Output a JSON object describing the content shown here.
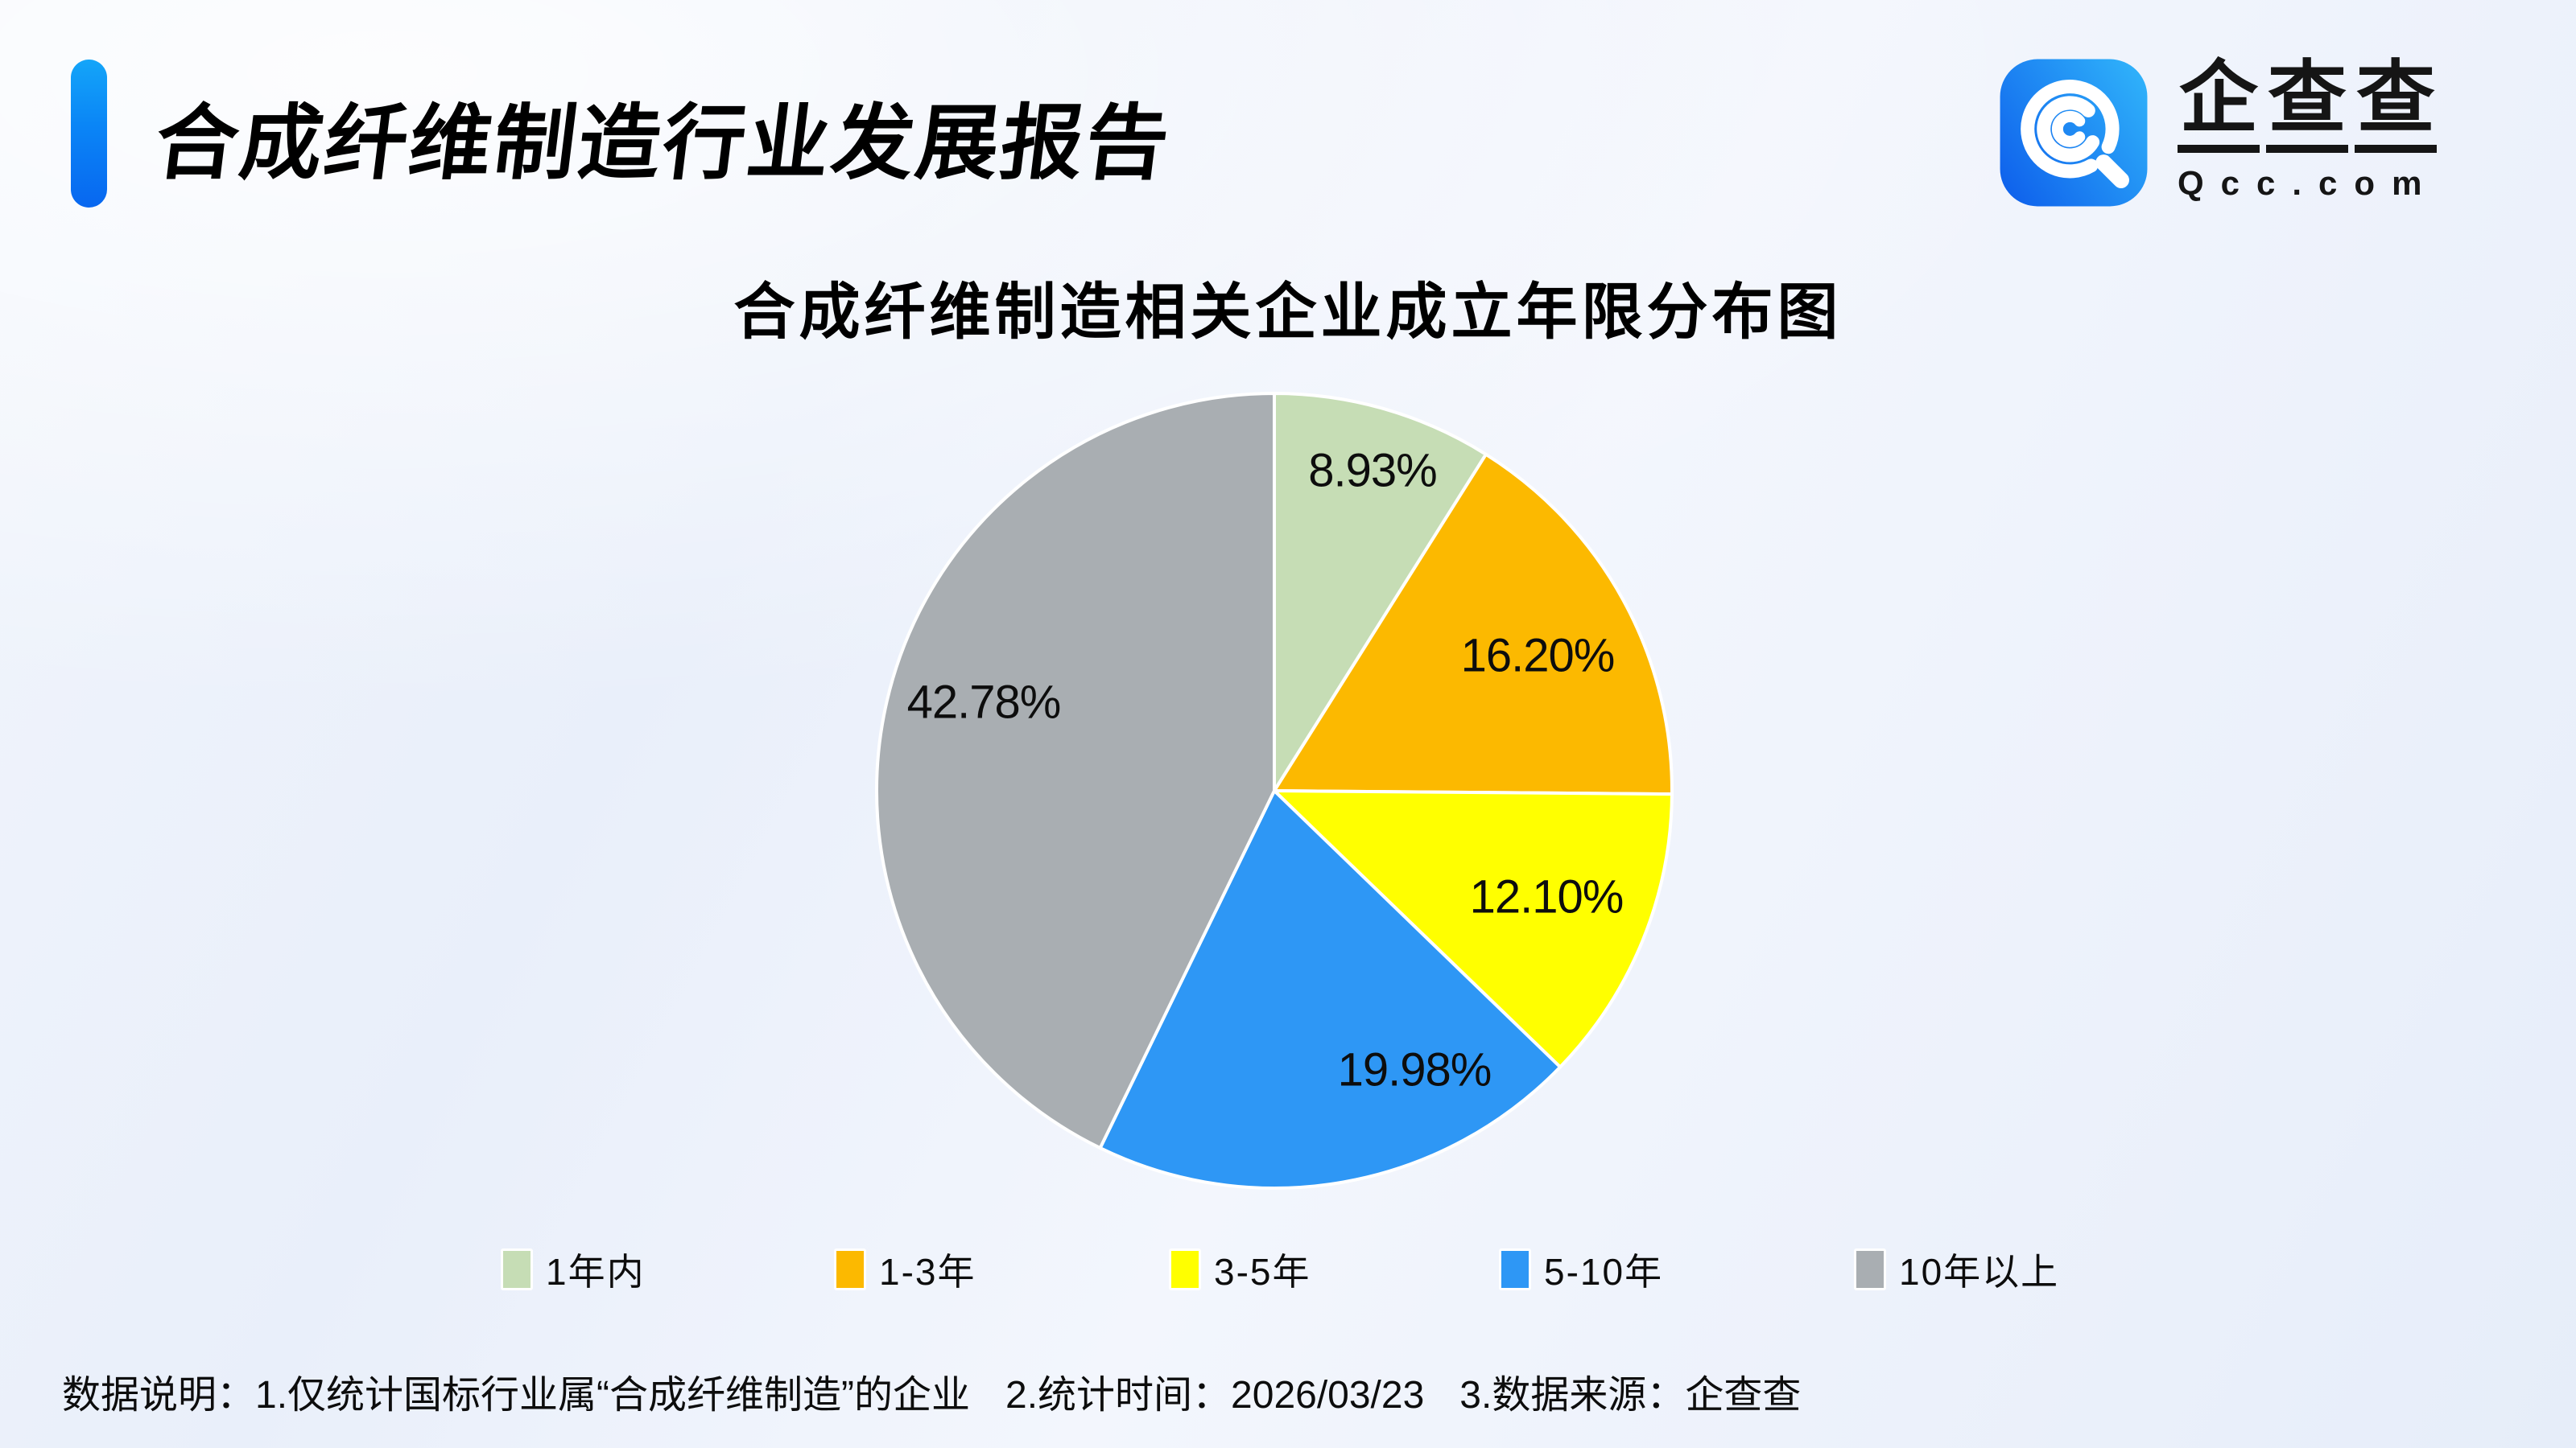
{
  "header": {
    "title": "合成纤维制造行业发展报告",
    "logo": {
      "icon": "qcc-magnifier-icon",
      "name_chars": [
        "企",
        "查",
        "查"
      ],
      "domain": "Qcc.com",
      "icon_gradient": [
        "#0f62ec",
        "#2fb1fa"
      ]
    },
    "accent_color": "#0a85f6"
  },
  "chart_data": {
    "type": "pie",
    "title": "合成纤维制造相关企业成立年限分布图",
    "series_name": "合成纤维制造相关企业成立年限占比",
    "start_angle_deg": 0,
    "direction": "clockwise",
    "legend_position": "bottom",
    "labels": "inside-percent",
    "slices": [
      {
        "key": "under-1-year",
        "label": "1年内",
        "value": 8.93,
        "display": "8.93%",
        "color": "#c6ddb5"
      },
      {
        "key": "1-3-years",
        "label": "1-3年",
        "value": 16.2,
        "display": "16.20%",
        "color": "#fcb900"
      },
      {
        "key": "3-5-years",
        "label": "3-5年",
        "value": 12.1,
        "display": "12.10%",
        "color": "#ffff00"
      },
      {
        "key": "5-10-years",
        "label": "5-10年",
        "value": 19.98,
        "display": "19.98%",
        "color": "#2e97f5"
      },
      {
        "key": "over-10-years",
        "label": "10年以上",
        "value": 42.78,
        "display": "42.78%",
        "color": "#a9aeb2"
      }
    ]
  },
  "footer": {
    "parts": [
      "数据说明：1.仅统计国标行业属“合成纤维制造”的企业",
      "2.统计时间：2026/03/23",
      "3.数据来源：企查查"
    ]
  }
}
